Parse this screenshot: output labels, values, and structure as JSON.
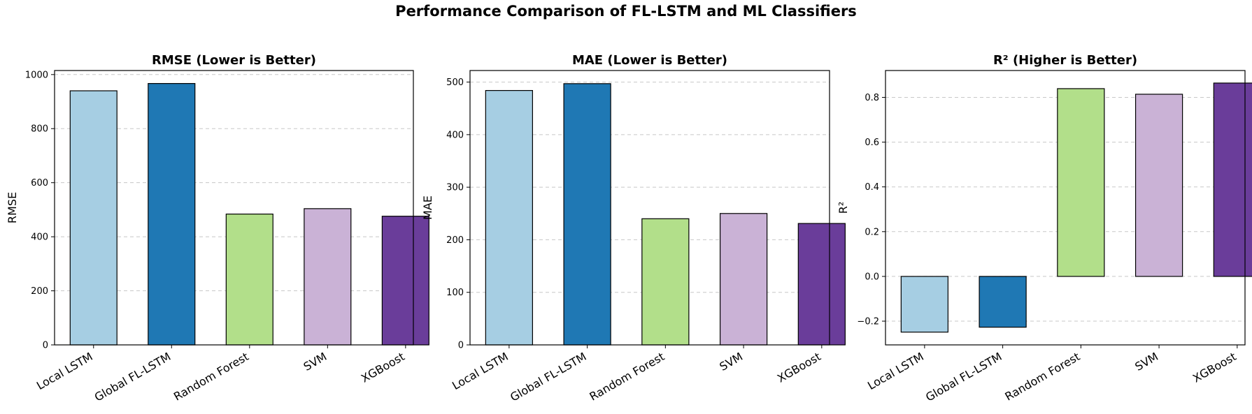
{
  "figure": {
    "title": "Performance Comparison of FL-LSTM and ML Classifiers"
  },
  "chart_data": [
    {
      "type": "bar",
      "title": "RMSE (Lower is Better)",
      "xlabel": "",
      "ylabel": "RMSE",
      "categories": [
        "Local LSTM",
        "Global FL-LSTM",
        "Random Forest",
        "SVM",
        "XGBoost"
      ],
      "values": [
        940,
        967,
        484,
        504,
        476
      ],
      "colors": [
        "#a6cee3",
        "#1f78b4",
        "#b2df8a",
        "#cab2d6",
        "#6a3d9a"
      ],
      "ylim": [
        0,
        1015
      ],
      "yticks": [
        0,
        200,
        400,
        600,
        800,
        1000
      ],
      "ytick_labels": [
        "0",
        "200",
        "400",
        "600",
        "800",
        "1000"
      ],
      "grid": "y-dashed",
      "legend": "none"
    },
    {
      "type": "bar",
      "title": "MAE (Lower is Better)",
      "xlabel": "",
      "ylabel": "MAE",
      "categories": [
        "Local LSTM",
        "Global FL-LSTM",
        "Random Forest",
        "SVM",
        "XGBoost"
      ],
      "values": [
        484,
        497,
        240,
        250,
        231
      ],
      "colors": [
        "#a6cee3",
        "#1f78b4",
        "#b2df8a",
        "#cab2d6",
        "#6a3d9a"
      ],
      "ylim": [
        0,
        522
      ],
      "yticks": [
        0,
        100,
        200,
        300,
        400,
        500
      ],
      "ytick_labels": [
        "0",
        "100",
        "200",
        "300",
        "400",
        "500"
      ],
      "grid": "y-dashed",
      "legend": "none"
    },
    {
      "type": "bar",
      "title": "R² (Higher is Better)",
      "xlabel": "",
      "ylabel": "R²",
      "categories": [
        "Local LSTM",
        "Global FL-LSTM",
        "Random Forest",
        "SVM",
        "XGBoost"
      ],
      "values": [
        -0.249,
        -0.227,
        0.839,
        0.814,
        0.864
      ],
      "colors": [
        "#a6cee3",
        "#1f78b4",
        "#b2df8a",
        "#cab2d6",
        "#6a3d9a"
      ],
      "ylim": [
        -0.306,
        0.92
      ],
      "yticks": [
        -0.2,
        0.0,
        0.2,
        0.4,
        0.6,
        0.8
      ],
      "ytick_labels": [
        "−0.2",
        "0.0",
        "0.2",
        "0.4",
        "0.6",
        "0.8"
      ],
      "grid": "y-dashed",
      "legend": "none"
    }
  ]
}
